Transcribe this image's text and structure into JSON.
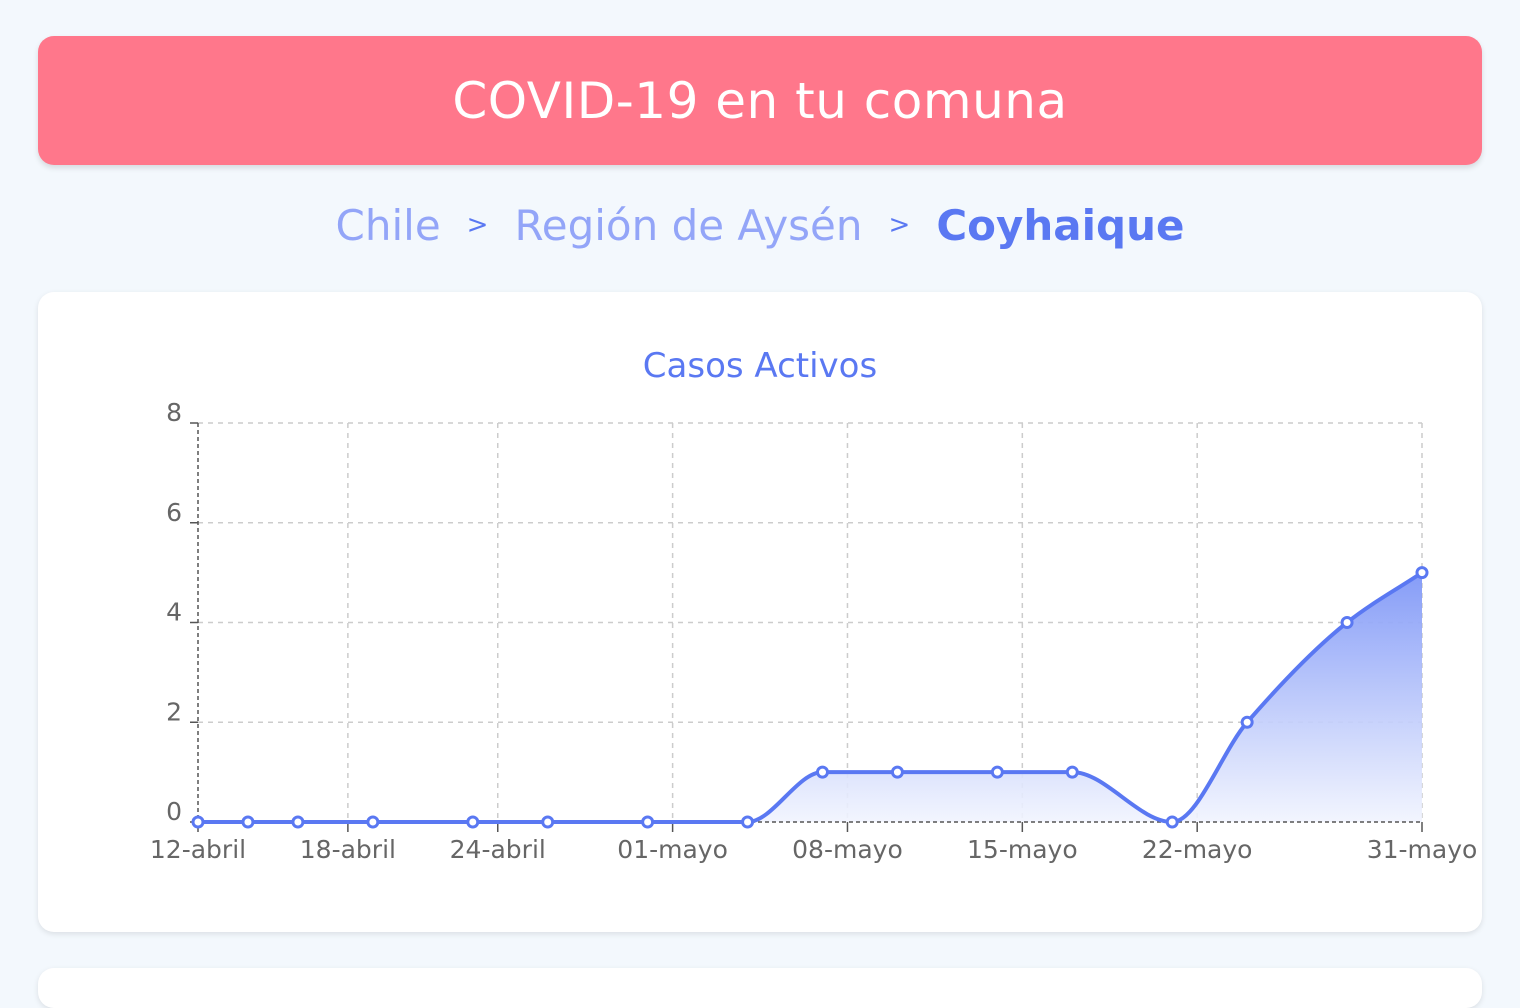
{
  "header": {
    "title": "COVID-19 en tu comuna"
  },
  "breadcrumb": {
    "items": [
      "Chile",
      "Región de Aysén",
      "Coyhaique"
    ],
    "separator": ">"
  },
  "colors": {
    "header_bg": "#ff778b",
    "accent": "#5a78f2",
    "crumb_inactive": "#93a5f8",
    "page_bg": "#f3f8fd"
  },
  "chart_data": {
    "type": "area",
    "title": "Casos Activos",
    "xlabel": "",
    "ylabel": "",
    "x": [
      "2020-04-12",
      "2020-04-14",
      "2020-04-16",
      "2020-04-19",
      "2020-04-23",
      "2020-04-26",
      "2020-04-30",
      "2020-05-04",
      "2020-05-07",
      "2020-05-10",
      "2020-05-14",
      "2020-05-17",
      "2020-05-21",
      "2020-05-24",
      "2020-05-28",
      "2020-05-31"
    ],
    "series": [
      {
        "values": [
          0,
          0,
          0,
          0,
          0,
          0,
          0,
          0,
          1,
          1,
          1,
          1,
          0,
          2,
          4,
          5
        ]
      }
    ],
    "x_ticks": [
      {
        "date": "2020-04-12",
        "label": "12-abril"
      },
      {
        "date": "2020-04-18",
        "label": "18-abril"
      },
      {
        "date": "2020-04-24",
        "label": "24-abril"
      },
      {
        "date": "2020-05-01",
        "label": "01-mayo"
      },
      {
        "date": "2020-05-08",
        "label": "08-mayo"
      },
      {
        "date": "2020-05-15",
        "label": "15-mayo"
      },
      {
        "date": "2020-05-22",
        "label": "22-mayo"
      },
      {
        "date": "2020-05-31",
        "label": "31-mayo"
      }
    ],
    "y_ticks": [
      0,
      2,
      4,
      6,
      8
    ],
    "ylim": [
      0,
      8
    ],
    "grid": true,
    "line_color": "#5a78f2",
    "fill_color_top": "#7f97f7",
    "fill_color_bottom": "#f1f4fe"
  }
}
